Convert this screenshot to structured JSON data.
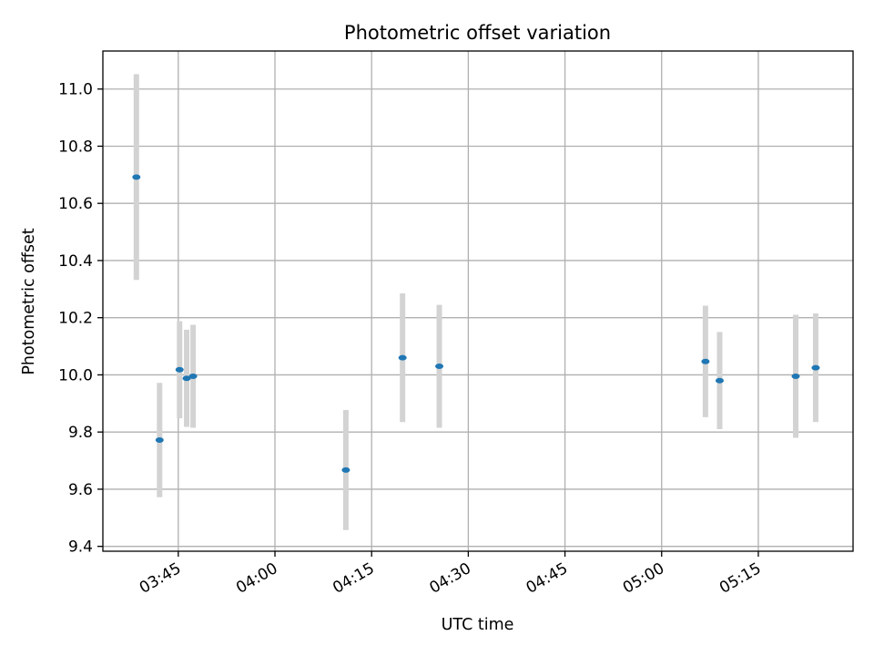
{
  "chart_data": {
    "type": "scatter",
    "title": "Photometric offset variation",
    "xlabel": "UTC time",
    "ylabel": "Photometric offset",
    "xlim": [
      "03:33:18",
      "05:29:42"
    ],
    "ylim": [
      9.383,
      11.133
    ],
    "x_ticks": [
      "03:45",
      "04:00",
      "04:15",
      "04:30",
      "04:45",
      "05:00",
      "05:15"
    ],
    "y_ticks": [
      "9.4",
      "9.6",
      "9.8",
      "10.0",
      "10.2",
      "10.4",
      "10.6",
      "10.8",
      "11.0"
    ],
    "grid": true,
    "colors": {
      "point": "#1f77b4",
      "errorbar": "#d3d3d3",
      "grid": "#b0b0b0"
    },
    "series": [
      {
        "points": [
          {
            "x": "03:38:30",
            "y": 10.692,
            "err": 0.36
          },
          {
            "x": "03:42:06",
            "y": 9.772,
            "err": 0.2
          },
          {
            "x": "03:45:12",
            "y": 10.018,
            "err": 0.17
          },
          {
            "x": "03:46:18",
            "y": 9.988,
            "err": 0.17
          },
          {
            "x": "03:47:18",
            "y": 9.995,
            "err": 0.18
          },
          {
            "x": "04:11:00",
            "y": 9.667,
            "err": 0.21
          },
          {
            "x": "04:19:48",
            "y": 10.06,
            "err": 0.225
          },
          {
            "x": "04:25:30",
            "y": 10.03,
            "err": 0.215
          },
          {
            "x": "05:06:48",
            "y": 10.047,
            "err": 0.195
          },
          {
            "x": "05:09:00",
            "y": 9.98,
            "err": 0.17
          },
          {
            "x": "05:20:48",
            "y": 9.995,
            "err": 0.215
          },
          {
            "x": "05:23:54",
            "y": 10.025,
            "err": 0.19
          }
        ]
      }
    ]
  }
}
